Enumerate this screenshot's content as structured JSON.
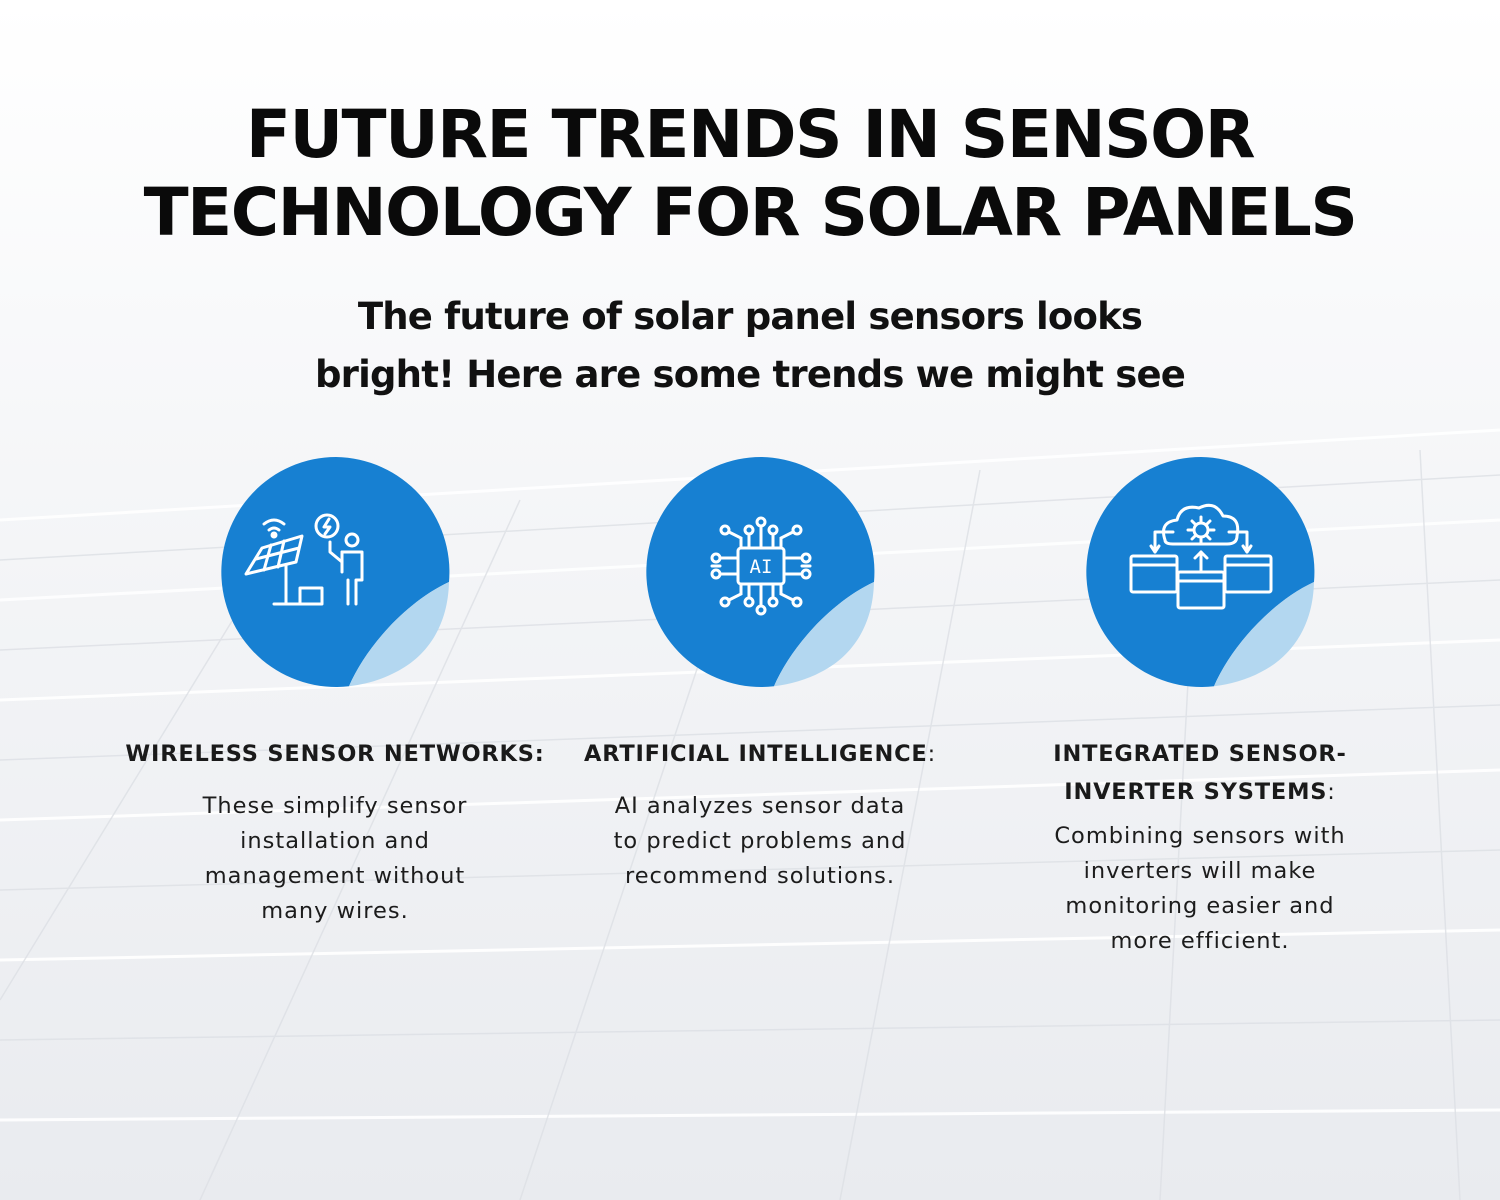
{
  "title": {
    "line1": "FUTURE TRENDS IN SENSOR",
    "line2": "TECHNOLOGY FOR SOLAR PANELS"
  },
  "subtitle": {
    "line1": "The future of solar panel sensors looks",
    "line2": "bright! Here are some trends we might see"
  },
  "colors": {
    "accent": "#1780d2",
    "curl": "#b3d7f0",
    "text": "#111111"
  },
  "cards": [
    {
      "icon": "solar-panel-technician-icon",
      "heading_line1": "WIRELESS SENSOR NETWORKS:",
      "body": [
        "These simplify sensor",
        "installation and",
        "management without",
        "many wires."
      ]
    },
    {
      "icon": "ai-chip-icon",
      "icon_text": "AI",
      "heading_line1": "ARTIFICIAL INTELLIGENCE",
      "heading_colon": ":",
      "body": [
        "AI analyzes sensor data",
        "to predict problems and",
        "recommend solutions."
      ]
    },
    {
      "icon": "cloud-gear-network-icon",
      "heading_line1": "INTEGRATED SENSOR-",
      "heading_line2": "INVERTER SYSTEMS",
      "heading_colon": ":",
      "body": [
        "Combining sensors with",
        "inverters will make",
        "monitoring easier and",
        "more efficient."
      ]
    }
  ]
}
